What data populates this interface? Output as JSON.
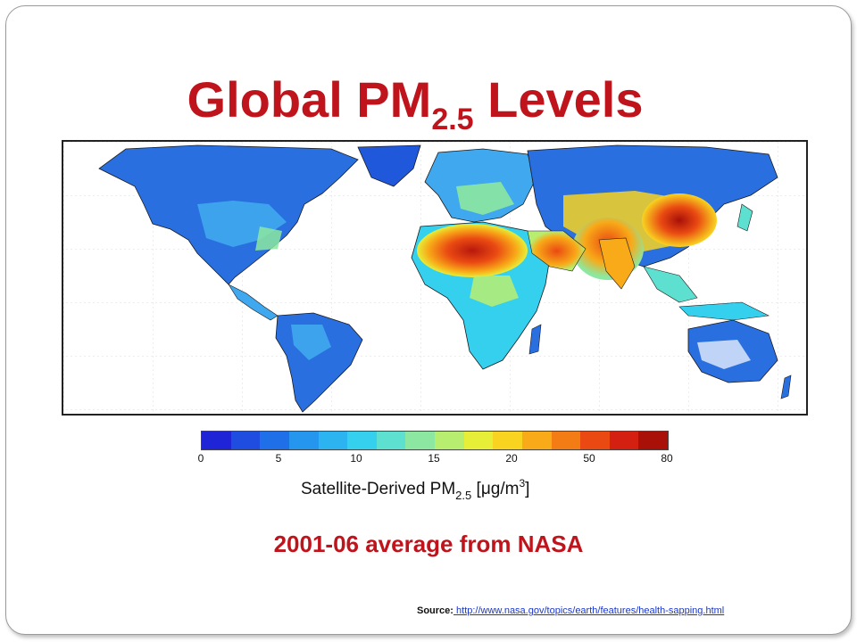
{
  "slide": {
    "title_main": "Global PM",
    "title_sub": "2.5",
    "title_end": " Levels",
    "subtitle": "2001-06 average from NASA",
    "source_label": "Source:",
    "source_url": " http://www.nasa.gov/topics/earth/features/health-sapping.html"
  },
  "colorbar": {
    "colors": [
      "#1f24d6",
      "#1f4de0",
      "#1f6fe8",
      "#2596ee",
      "#2bb4f0",
      "#35d0ee",
      "#5ee0d0",
      "#8ce8a0",
      "#b8ee70",
      "#e6ee38",
      "#f8d420",
      "#f8aa18",
      "#f47c14",
      "#ea4a12",
      "#d42010",
      "#a81008"
    ],
    "ticks": [
      "0",
      "5",
      "10",
      "15",
      "20",
      "50",
      "80"
    ],
    "label_main": "Satellite-Derived PM",
    "label_sub": "2.5",
    "label_unit_pre": " [",
    "label_unit_mu": "μ",
    "label_unit": "g/m",
    "label_unit_sup": "3",
    "label_unit_end": "]"
  },
  "map": {
    "ocean_color": "#ffffff",
    "low_color": "#2a6fe0",
    "high_color": "#d42010"
  }
}
